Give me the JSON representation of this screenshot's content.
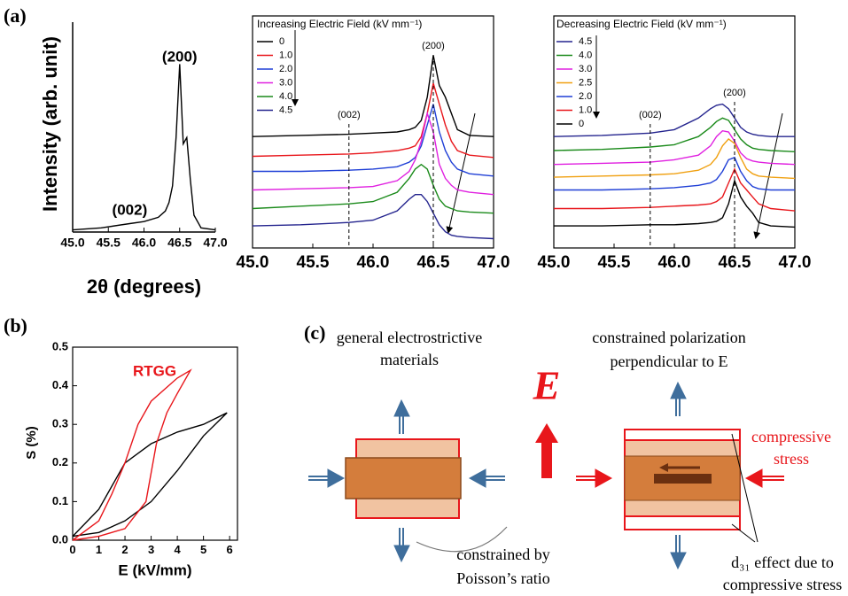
{
  "panel_labels": [
    "(a)",
    "(b)",
    "(c)"
  ],
  "chart_data": [
    {
      "type": "line",
      "xlabel": "2θ (degrees)",
      "ylabel": "Intensity (arb. unit)",
      "x": [
        45.0,
        45.4,
        45.8,
        46.0,
        46.2,
        46.3,
        46.35,
        46.4,
        46.45,
        46.5,
        46.55,
        46.6,
        46.65,
        46.7,
        46.8,
        47.0
      ],
      "series": [
        {
          "color": "#000000",
          "values": [
            0.01,
            0.02,
            0.04,
            0.05,
            0.07,
            0.1,
            0.14,
            0.22,
            0.45,
            0.8,
            0.42,
            0.45,
            0.25,
            0.08,
            0.02,
            0.01
          ]
        }
      ],
      "xlim": [
        45,
        47
      ],
      "ylim": [
        0,
        1
      ],
      "xticks": [
        {
          "value": 45,
          "label": "45.0"
        },
        {
          "value": 45.5,
          "label": "45.5"
        },
        {
          "value": 46,
          "label": "46.0"
        },
        {
          "value": 46.5,
          "label": "46.5"
        },
        {
          "value": 47,
          "label": "47.0"
        }
      ],
      "annotations": [
        {
          "text": "(002)",
          "x": 45.8
        },
        {
          "text": "(200)",
          "x": 46.5
        }
      ],
      "reference_lines": false
    },
    {
      "type": "line",
      "legend_title": "Increasing Electric Field (kV mm⁻¹)",
      "x": [
        45.0,
        45.4,
        45.8,
        46.0,
        46.2,
        46.3,
        46.35,
        46.4,
        46.45,
        46.5,
        46.55,
        46.6,
        46.65,
        46.7,
        46.8,
        47.0
      ],
      "series": [
        {
          "name": "0",
          "color": "#000000",
          "values": [
            4.8,
            4.85,
            4.9,
            4.95,
            5.0,
            5.1,
            5.2,
            5.5,
            6.5,
            8.3,
            7.0,
            6.5,
            5.8,
            5.1,
            4.85,
            4.8
          ]
        },
        {
          "name": "1.0",
          "color": "#e8161b",
          "values": [
            3.95,
            4.0,
            4.05,
            4.1,
            4.2,
            4.3,
            4.4,
            4.8,
            5.8,
            7.1,
            6.2,
            5.3,
            4.6,
            4.2,
            4.0,
            3.9
          ]
        },
        {
          "name": "2.0",
          "color": "#1f3fd6",
          "values": [
            3.3,
            3.3,
            3.35,
            3.4,
            3.5,
            3.7,
            3.9,
            4.4,
            5.3,
            6.2,
            5.0,
            4.2,
            3.7,
            3.4,
            3.2,
            3.1
          ]
        },
        {
          "name": "3.0",
          "color": "#e020e0",
          "values": [
            2.5,
            2.55,
            2.6,
            2.65,
            2.9,
            3.3,
            3.8,
            4.6,
            5.8,
            5.0,
            3.6,
            3.0,
            2.7,
            2.5,
            2.4,
            2.3
          ]
        },
        {
          "name": "4.0",
          "color": "#1a8a1a",
          "values": [
            1.7,
            1.8,
            1.9,
            2.0,
            2.4,
            3.0,
            3.4,
            3.6,
            3.4,
            2.7,
            2.1,
            1.8,
            1.7,
            1.6,
            1.55,
            1.5
          ]
        },
        {
          "name": "4.5",
          "color": "#24248e",
          "values": [
            0.95,
            1.0,
            1.1,
            1.2,
            1.6,
            2.1,
            2.3,
            2.3,
            2.0,
            1.5,
            1.0,
            0.7,
            0.55,
            0.5,
            0.45,
            0.4
          ]
        }
      ],
      "xlim": [
        45,
        47
      ],
      "ylim": [
        0,
        10
      ],
      "xticks": [
        {
          "value": 45,
          "label": "45.0"
        },
        {
          "value": 45.5,
          "label": "45.5"
        },
        {
          "value": 46,
          "label": "46.0"
        },
        {
          "value": 46.5,
          "label": "46.5"
        },
        {
          "value": 47,
          "label": "47.0"
        }
      ],
      "annotations": [
        {
          "text": "(002)",
          "x": 45.8
        },
        {
          "text": "(200)",
          "x": 46.5
        }
      ],
      "reference_lines": true
    },
    {
      "type": "line",
      "legend_title": "Decreasing Electric Field (kV mm⁻¹)",
      "x": [
        45.0,
        45.4,
        45.8,
        46.0,
        46.2,
        46.3,
        46.35,
        46.4,
        46.45,
        46.5,
        46.55,
        46.6,
        46.65,
        46.7,
        46.8,
        47.0
      ],
      "series": [
        {
          "name": "4.5",
          "color": "#24248e",
          "values": [
            4.8,
            4.85,
            4.95,
            5.1,
            5.6,
            6.0,
            6.15,
            6.2,
            6.0,
            5.6,
            5.2,
            5.0,
            4.9,
            4.85,
            4.8,
            4.8
          ]
        },
        {
          "name": "4.0",
          "color": "#1a8a1a",
          "values": [
            4.2,
            4.25,
            4.35,
            4.45,
            4.8,
            5.2,
            5.45,
            5.6,
            5.5,
            5.1,
            4.7,
            4.45,
            4.3,
            4.25,
            4.2,
            4.15
          ]
        },
        {
          "name": "3.0",
          "color": "#e020e0",
          "values": [
            3.6,
            3.65,
            3.7,
            3.8,
            4.0,
            4.4,
            4.8,
            5.05,
            5.0,
            4.6,
            4.1,
            3.85,
            3.75,
            3.7,
            3.65,
            3.6
          ]
        },
        {
          "name": "2.5",
          "color": "#f0a010",
          "values": [
            3.05,
            3.1,
            3.15,
            3.2,
            3.35,
            3.6,
            3.9,
            4.4,
            4.7,
            4.5,
            3.9,
            3.4,
            3.2,
            3.1,
            3.05,
            3.0
          ]
        },
        {
          "name": "2.0",
          "color": "#1f3fd6",
          "values": [
            2.5,
            2.5,
            2.55,
            2.6,
            2.7,
            2.8,
            2.95,
            3.3,
            3.8,
            3.9,
            3.3,
            2.9,
            2.65,
            2.55,
            2.5,
            2.5
          ]
        },
        {
          "name": "1.0",
          "color": "#e8161b",
          "values": [
            1.7,
            1.7,
            1.75,
            1.8,
            1.85,
            1.9,
            2.0,
            2.2,
            2.8,
            3.4,
            2.8,
            2.5,
            2.2,
            1.9,
            1.7,
            1.6
          ]
        },
        {
          "name": "0",
          "color": "#000000",
          "values": [
            0.95,
            0.95,
            1.0,
            1.0,
            1.05,
            1.1,
            1.15,
            1.3,
            1.9,
            2.9,
            2.2,
            1.8,
            1.5,
            1.1,
            0.95,
            0.9
          ]
        }
      ],
      "xlim": [
        45,
        47
      ],
      "ylim": [
        0,
        10
      ],
      "xticks": [
        {
          "value": 45,
          "label": "45.0"
        },
        {
          "value": 45.5,
          "label": "45.5"
        },
        {
          "value": 46,
          "label": "46.0"
        },
        {
          "value": 46.5,
          "label": "46.5"
        },
        {
          "value": 47,
          "label": "47.0"
        }
      ],
      "annotations": [
        {
          "text": "(002)",
          "x": 45.8
        },
        {
          "text": "(200)",
          "x": 46.5
        }
      ],
      "reference_lines": true
    },
    {
      "type": "line",
      "xlabel": "E (kV/mm)",
      "ylabel": "S (%)",
      "series": [
        {
          "color": "#000000",
          "x": [
            0,
            1,
            2,
            3,
            4,
            5,
            5.9,
            5,
            4,
            3,
            2,
            1,
            0
          ],
          "values": [
            0.01,
            0.02,
            0.05,
            0.1,
            0.18,
            0.27,
            0.33,
            0.3,
            0.28,
            0.25,
            0.2,
            0.08,
            0.01
          ]
        },
        {
          "name": "RTGG",
          "color": "#e8161b",
          "x": [
            0,
            1,
            2,
            2.8,
            3.2,
            3.6,
            4,
            4.5,
            4,
            3,
            2.5,
            2,
            1.5,
            1,
            0
          ],
          "values": [
            0,
            0.01,
            0.03,
            0.1,
            0.25,
            0.33,
            0.38,
            0.44,
            0.42,
            0.36,
            0.3,
            0.2,
            0.12,
            0.05,
            0
          ]
        }
      ],
      "xlim": [
        0,
        6.3
      ],
      "ylim": [
        0,
        0.5
      ],
      "xticks": [
        0,
        1,
        2,
        3,
        4,
        5,
        6
      ],
      "yticks": [
        {
          "value": 0,
          "label": "0.0"
        },
        0.1,
        0.2,
        0.3,
        0.4,
        0.5
      ]
    }
  ],
  "diagram": {
    "left_caption": [
      "general electrostrictive",
      "materials"
    ],
    "right_caption": [
      "constrained polarization",
      "perpendicular to E"
    ],
    "field_label": "E",
    "stress_label": [
      "compressive",
      "stress"
    ],
    "poisson_label": [
      "constrained by",
      "Poisson’s ratio"
    ],
    "d31_label": [
      "d₃₁ effect due to",
      "compressive stress"
    ]
  }
}
